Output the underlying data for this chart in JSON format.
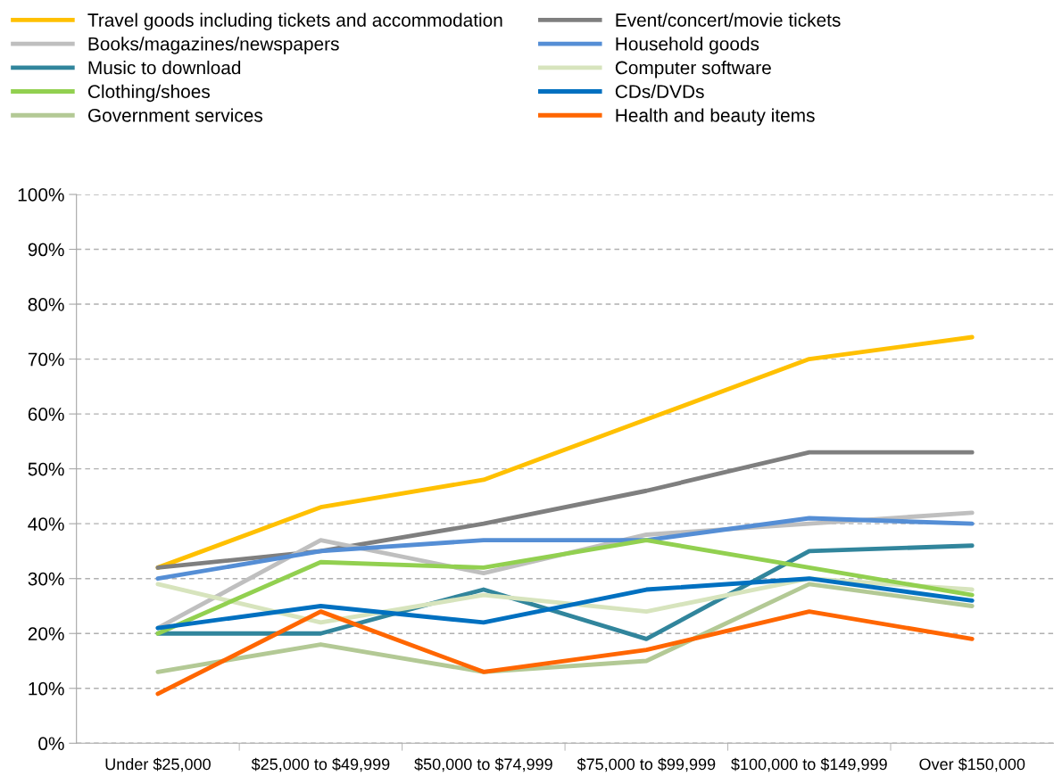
{
  "chart_data": {
    "type": "line",
    "categories": [
      "Under $25,000",
      "$25,000 to $49,999",
      "$50,000 to $74,999",
      "$75,000 to $99,999",
      "$100,000 to $149,999",
      "Over $150,000"
    ],
    "series": [
      {
        "name": "Travel goods including tickets and accommodation",
        "color": "#ffc000",
        "values": [
          32,
          43,
          48,
          59,
          70,
          74
        ]
      },
      {
        "name": "Event/concert/movie tickets",
        "color": "#7f7f7f",
        "values": [
          32,
          35,
          40,
          46,
          53,
          53
        ]
      },
      {
        "name": "Books/magazines/newspapers",
        "color": "#bfbfbf",
        "values": [
          21,
          37,
          31,
          38,
          40,
          42
        ]
      },
      {
        "name": "Household goods",
        "color": "#558ed5",
        "values": [
          30,
          35,
          37,
          37,
          41,
          40
        ]
      },
      {
        "name": "Music to download",
        "color": "#31859c",
        "values": [
          20,
          20,
          28,
          19,
          35,
          36
        ]
      },
      {
        "name": "Computer software",
        "color": "#d7e4bd",
        "values": [
          29,
          22,
          27,
          24,
          30,
          28
        ]
      },
      {
        "name": "Clothing/shoes",
        "color": "#92d050",
        "values": [
          20,
          33,
          32,
          37,
          32,
          27
        ]
      },
      {
        "name": "CDs/DVDs",
        "color": "#0070c0",
        "values": [
          21,
          25,
          22,
          28,
          30,
          26
        ]
      },
      {
        "name": "Government services",
        "color": "#b3c995",
        "values": [
          13,
          18,
          13,
          15,
          29,
          25
        ]
      },
      {
        "name": "Health and beauty items",
        "color": "#ff6600",
        "values": [
          9,
          24,
          13,
          17,
          24,
          19
        ]
      }
    ],
    "ylim": [
      0,
      100
    ],
    "yticks": [
      {
        "value": 0,
        "label": "0%"
      },
      {
        "value": 10,
        "label": "10%"
      },
      {
        "value": 20,
        "label": "20%"
      },
      {
        "value": 30,
        "label": "30%"
      },
      {
        "value": 40,
        "label": "40%"
      },
      {
        "value": 50,
        "label": "50%"
      },
      {
        "value": 60,
        "label": "60%"
      },
      {
        "value": 70,
        "label": "70%"
      },
      {
        "value": 80,
        "label": "80%"
      },
      {
        "value": 90,
        "label": "90%"
      },
      {
        "value": 100,
        "label": "100%"
      }
    ],
    "grid": "y",
    "legend": "top",
    "marker": "none",
    "line_style": "solid"
  }
}
